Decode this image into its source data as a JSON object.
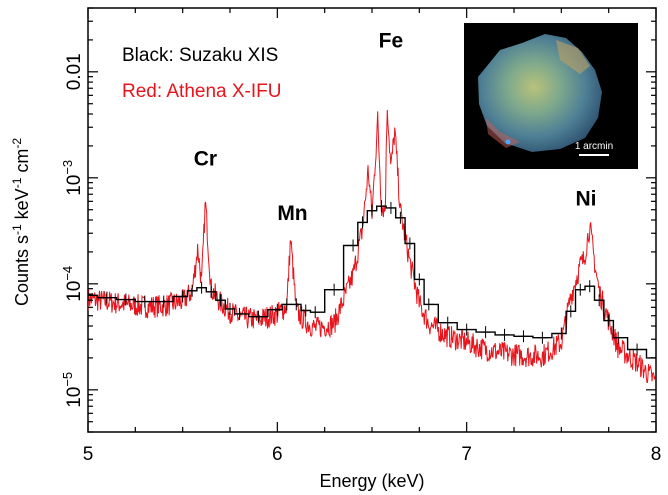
{
  "chart_data": {
    "type": "line",
    "xlabel": "Energy (keV)",
    "ylabel_parts": {
      "base": "Counts s",
      "sup1": "-1",
      "mid1": " keV",
      "sup2": "-1",
      "mid2": " cm",
      "sup3": "-2"
    },
    "xlim": [
      5,
      8
    ],
    "ylim": [
      4e-06,
      0.04
    ],
    "yscale": "log",
    "xticks": [
      5,
      6,
      7,
      8
    ],
    "x_tick_labels": [
      "5",
      "6",
      "7",
      "8"
    ],
    "yticks": [
      1e-05,
      0.0001,
      0.001,
      0.01
    ],
    "y_tick_labels": [
      {
        "value": 1e-05,
        "base": "10",
        "exp": "−5"
      },
      {
        "value": 0.0001,
        "base": "10",
        "exp": "−4"
      },
      {
        "value": 0.001,
        "base": "10",
        "exp": "−3"
      },
      {
        "value": 0.01,
        "base": "0.01",
        "exp": ""
      }
    ],
    "legend": [
      {
        "text": "Black: Suzaku XIS",
        "color": "#000000"
      },
      {
        "text": "Red: Athena X-IFU",
        "color": "#e8141c"
      }
    ],
    "legend_location": "top-left",
    "annotations": [
      {
        "text": "Cr",
        "x": 5.62,
        "y": 0.0013
      },
      {
        "text": "Mn",
        "x": 6.08,
        "y": 0.0004
      },
      {
        "text": "Fe",
        "x": 6.6,
        "y": 0.017
      },
      {
        "text": "Ni",
        "x": 7.63,
        "y": 0.00055
      }
    ],
    "inset": {
      "scale_label": "1 arcmin"
    },
    "series": [
      {
        "name": "Suzaku XIS",
        "color": "#000000",
        "x": [
          5.0,
          5.1,
          5.2,
          5.3,
          5.4,
          5.5,
          5.55,
          5.6,
          5.65,
          5.7,
          5.75,
          5.8,
          5.9,
          6.0,
          6.05,
          6.1,
          6.15,
          6.2,
          6.3,
          6.4,
          6.45,
          6.5,
          6.55,
          6.6,
          6.65,
          6.7,
          6.75,
          6.8,
          6.9,
          7.0,
          7.1,
          7.2,
          7.3,
          7.4,
          7.5,
          7.55,
          7.6,
          7.65,
          7.7,
          7.75,
          7.8,
          7.9,
          8.0
        ],
        "y": [
          7.8e-05,
          7.4e-05,
          7.1e-05,
          6.8e-05,
          6.8e-05,
          7.6e-05,
          8.6e-05,
          9.2e-05,
          8.4e-05,
          7e-05,
          5.8e-05,
          5.2e-05,
          4.9e-05,
          5.7e-05,
          6.4e-05,
          6.4e-05,
          5.6e-05,
          5.4e-05,
          8.8e-05,
          0.00023,
          0.00038,
          0.00049,
          0.00054,
          0.00052,
          0.00042,
          0.00024,
          0.00011,
          6.4e-05,
          4.3e-05,
          3.7e-05,
          3.5e-05,
          3.3e-05,
          3.2e-05,
          3.1e-05,
          3.4e-05,
          5.5e-05,
          8.8e-05,
          9.5e-05,
          7e-05,
          4.5e-05,
          3.1e-05,
          2.4e-05,
          2e-05
        ]
      },
      {
        "name": "Athena X-IFU",
        "color": "#e8141c",
        "x": [
          5.0,
          5.1,
          5.2,
          5.3,
          5.4,
          5.5,
          5.55,
          5.58,
          5.6,
          5.62,
          5.65,
          5.7,
          5.75,
          5.8,
          5.9,
          6.0,
          6.05,
          6.07,
          6.1,
          6.15,
          6.2,
          6.3,
          6.4,
          6.45,
          6.48,
          6.5,
          6.53,
          6.55,
          6.57,
          6.58,
          6.6,
          6.62,
          6.65,
          6.7,
          6.75,
          6.8,
          6.9,
          7.0,
          7.1,
          7.2,
          7.3,
          7.4,
          7.5,
          7.55,
          7.6,
          7.62,
          7.65,
          7.68,
          7.7,
          7.75,
          7.8,
          7.9,
          8.0
        ],
        "y": [
          7.2e-05,
          6.8e-05,
          6.4e-05,
          6.1e-05,
          6.2e-05,
          6.8e-05,
          8.5e-05,
          0.00022,
          0.0001,
          0.0006,
          9e-05,
          6.6e-05,
          5.5e-05,
          4.8e-05,
          4.6e-05,
          5.2e-05,
          6.2e-05,
          0.00027,
          5.5e-05,
          4.4e-05,
          3.8e-05,
          4.2e-05,
          0.00012,
          0.00033,
          0.0012,
          0.00045,
          0.0035,
          0.00055,
          0.0005,
          0.0052,
          0.0012,
          0.0028,
          0.00048,
          0.00016,
          6.5e-05,
          4.2e-05,
          3.2e-05,
          2.8e-05,
          2.4e-05,
          2.2e-05,
          2.1e-05,
          2.1e-05,
          2.8e-05,
          7.5e-05,
          0.00015,
          0.00017,
          0.00035,
          0.00014,
          8.5e-05,
          4.5e-05,
          2.5e-05,
          1.8e-05,
          1.2e-05
        ]
      }
    ]
  }
}
